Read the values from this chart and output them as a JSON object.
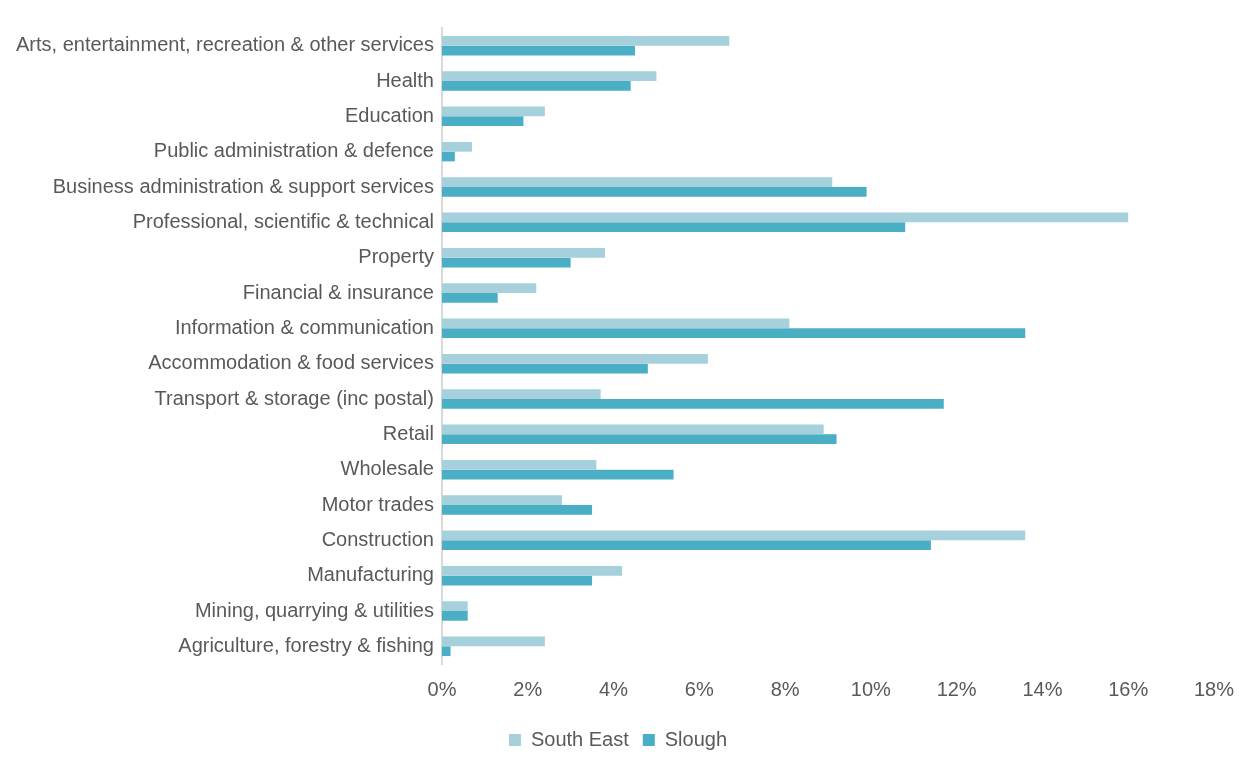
{
  "chart_data": {
    "type": "bar",
    "orientation": "horizontal",
    "categories": [
      "Arts, entertainment, recreation & other services",
      "Health",
      "Education",
      "Public administration & defence",
      "Business administration & support services",
      "Professional, scientific & technical",
      "Property",
      "Financial & insurance",
      "Information & communication",
      "Accommodation & food services",
      "Transport & storage (inc postal)",
      "Retail",
      "Wholesale",
      "Motor trades",
      "Construction",
      "Manufacturing",
      "Mining, quarrying & utilities",
      "Agriculture, forestry & fishing"
    ],
    "series": [
      {
        "name": "South East",
        "color": "#a5d0dc",
        "values": [
          6.7,
          5.0,
          2.4,
          0.7,
          9.1,
          16.0,
          3.8,
          2.2,
          8.1,
          6.2,
          3.7,
          8.9,
          3.6,
          2.8,
          13.6,
          4.2,
          0.6,
          2.4
        ]
      },
      {
        "name": "Slough",
        "color": "#4aaec5",
        "values": [
          4.5,
          4.4,
          1.9,
          0.3,
          9.9,
          10.8,
          3.0,
          1.3,
          13.6,
          4.8,
          11.7,
          9.2,
          5.4,
          3.5,
          11.4,
          3.5,
          0.6,
          0.2
        ]
      }
    ],
    "xlim": [
      0,
      18
    ],
    "xticks": [
      {
        "value": 0,
        "label": "0%"
      },
      {
        "value": 2,
        "label": "2%"
      },
      {
        "value": 4,
        "label": "4%"
      },
      {
        "value": 6,
        "label": "6%"
      },
      {
        "value": 8,
        "label": "8%"
      },
      {
        "value": 10,
        "label": "10%"
      },
      {
        "value": 12,
        "label": "12%"
      },
      {
        "value": 14,
        "label": "14%"
      },
      {
        "value": 16,
        "label": "16%"
      },
      {
        "value": 18,
        "label": "18%"
      }
    ],
    "grid": false,
    "legend": "bottom"
  }
}
